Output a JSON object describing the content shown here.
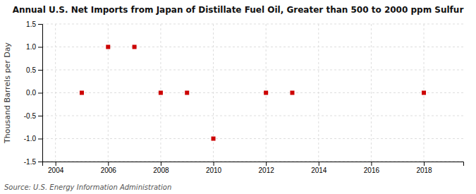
{
  "chart_data": {
    "type": "scatter",
    "title": "Annual U.S. Net Imports from Japan of Distillate Fuel Oil, Greater than 500 to 2000 ppm Sulfur",
    "ylabel": "Thousand Barrels per Day",
    "annotation": "Source: U.S. Energy Information Administration",
    "x": [
      2005,
      2006,
      2007,
      2008,
      2009,
      2010,
      2012,
      2013,
      2018
    ],
    "values": [
      0,
      1,
      1,
      0,
      0,
      -1,
      0,
      0,
      0
    ],
    "color": "#CC0000",
    "marker": "square",
    "xlim": [
      2003.5,
      2019.5
    ],
    "ylim": [
      -1.5,
      1.5
    ],
    "xticks": [
      2004,
      2006,
      2008,
      2010,
      2012,
      2014,
      2016,
      2018
    ],
    "yticks": [
      -1.5,
      {
        "value": -1.0,
        "label": "-1.0"
      },
      -0.5,
      {
        "value": 0.0,
        "label": "0.0"
      },
      0.5,
      {
        "value": 1.0,
        "label": "1.0"
      },
      1.5
    ],
    "grid": true
  }
}
